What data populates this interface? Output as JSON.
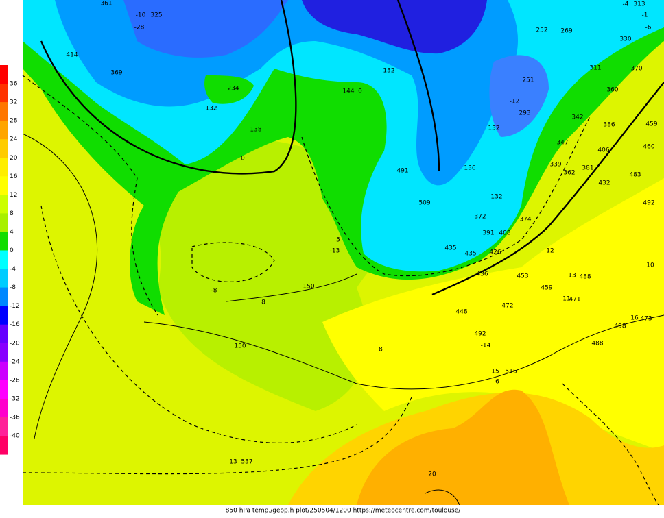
{
  "colorbar": {
    "labels": [
      36,
      32,
      28,
      24,
      20,
      16,
      12,
      8,
      4,
      0,
      -4,
      -8,
      -12,
      -16,
      -20,
      -24,
      -28,
      -32,
      -36,
      -40
    ]
  },
  "map": {
    "labels": [
      "313",
      "-4",
      "-1",
      "-6",
      "269",
      "252",
      "330",
      "311",
      "370",
      "360",
      "342",
      "386",
      "459",
      "406",
      "460",
      "347",
      "339",
      "362",
      "381",
      "483",
      "432",
      "492",
      "361",
      "-10",
      "325",
      "-28",
      "414",
      "369",
      "144",
      "0",
      "132",
      "138",
      "0",
      "234",
      "132",
      "491",
      "509",
      "372",
      "374",
      "391",
      "408",
      "435",
      "435",
      "426",
      "436",
      "448",
      "453",
      "459",
      "471",
      "488",
      "473",
      "498",
      "488",
      "492",
      "516",
      "150",
      "150",
      "8",
      "-8",
      "8",
      "20",
      "13",
      "537",
      "-13",
      "5",
      "16",
      "10",
      "12",
      "13",
      "11",
      "472",
      "-14",
      "15",
      "6",
      "132",
      "136",
      "132",
      "251",
      "293",
      "-12"
    ]
  },
  "footer": "850 hPa temp./geop.h plot/250504/1200 https://meteocentre.com/toulouse/"
}
